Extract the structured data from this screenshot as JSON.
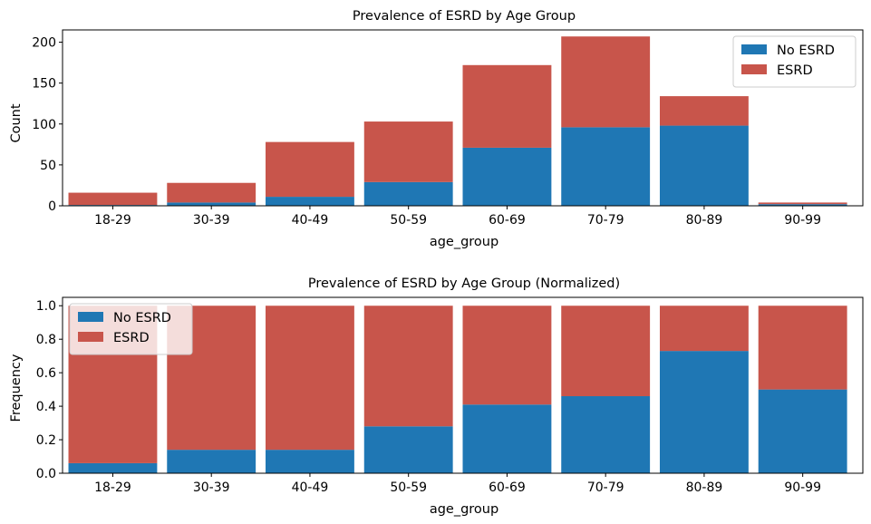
{
  "chart_data": [
    {
      "type": "bar",
      "stacked": true,
      "title": "Prevalence of ESRD by Age Group",
      "xlabel": "age_group",
      "ylabel": "Count",
      "categories": [
        "18-29",
        "30-39",
        "40-49",
        "50-59",
        "60-69",
        "70-79",
        "80-89",
        "90-99"
      ],
      "series": [
        {
          "name": "No ESRD",
          "color": "#1f77b4",
          "values": [
            1,
            4,
            11,
            29,
            71,
            96,
            98,
            2
          ]
        },
        {
          "name": "ESRD",
          "color": "#c8554b",
          "values": [
            15,
            24,
            67,
            74,
            101,
            111,
            36,
            2
          ]
        }
      ],
      "ylim": [
        0,
        215
      ],
      "yticks": [
        0,
        50,
        100,
        150,
        200
      ],
      "legend": "upper-right",
      "grid": false
    },
    {
      "type": "bar",
      "stacked": true,
      "title": "Prevalence of ESRD by Age Group (Normalized)",
      "xlabel": "age_group",
      "ylabel": "Frequency",
      "categories": [
        "18-29",
        "30-39",
        "40-49",
        "50-59",
        "60-69",
        "70-79",
        "80-89",
        "90-99"
      ],
      "series": [
        {
          "name": "No ESRD",
          "color": "#1f77b4",
          "values": [
            0.06,
            0.14,
            0.14,
            0.28,
            0.41,
            0.46,
            0.73,
            0.5
          ]
        },
        {
          "name": "ESRD",
          "color": "#c8554b",
          "values": [
            0.94,
            0.86,
            0.86,
            0.72,
            0.59,
            0.54,
            0.27,
            0.5
          ]
        }
      ],
      "ylim": [
        0,
        1.05
      ],
      "yticks": [
        0.0,
        0.2,
        0.4,
        0.6,
        0.8,
        1.0
      ],
      "ytick_labels": [
        "0.0",
        "0.2",
        "0.4",
        "0.6",
        "0.8",
        "1.0"
      ],
      "legend": "upper-left",
      "grid": false
    }
  ]
}
